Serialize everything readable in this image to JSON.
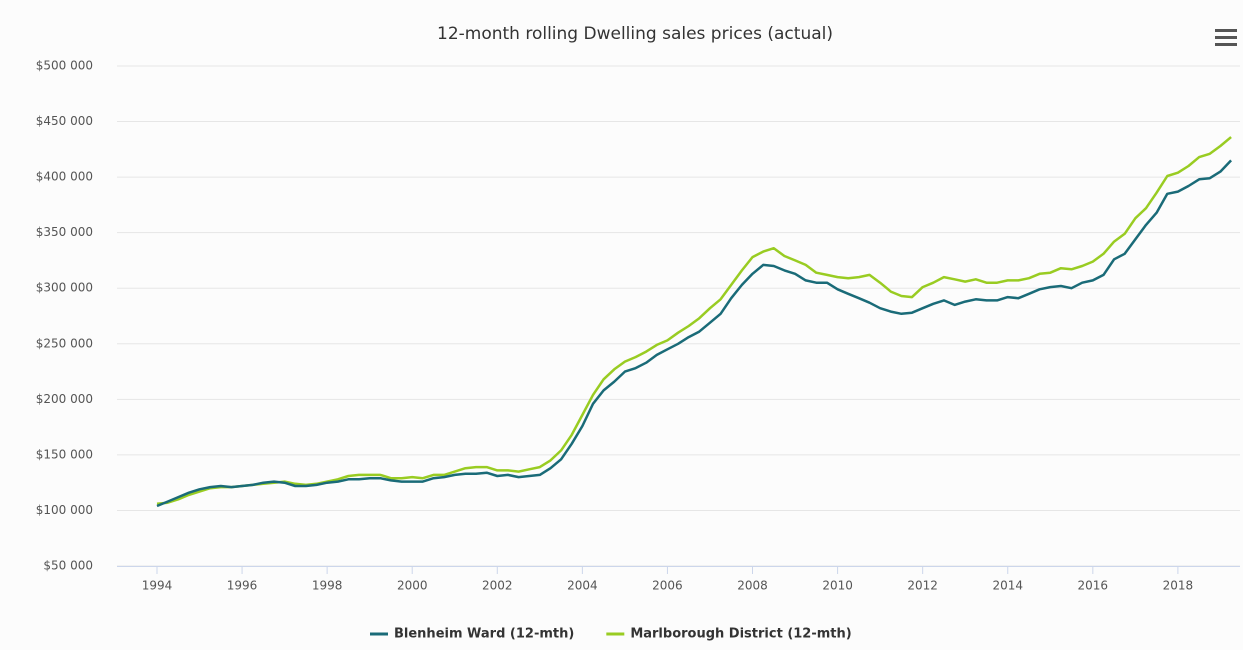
{
  "chart_data": {
    "type": "line",
    "title": "12-month rolling Dwelling sales prices (actual)",
    "x": [
      1994,
      1994.25,
      1994.5,
      1994.75,
      1995,
      1995.25,
      1995.5,
      1995.75,
      1996,
      1996.25,
      1996.5,
      1996.75,
      1997,
      1997.25,
      1997.5,
      1997.75,
      1998,
      1998.25,
      1998.5,
      1998.75,
      1999,
      1999.25,
      1999.5,
      1999.75,
      2000,
      2000.25,
      2000.5,
      2000.75,
      2001,
      2001.25,
      2001.5,
      2001.75,
      2002,
      2002.25,
      2002.5,
      2002.75,
      2003,
      2003.25,
      2003.5,
      2003.75,
      2004,
      2004.25,
      2004.5,
      2004.75,
      2005,
      2005.25,
      2005.5,
      2005.75,
      2006,
      2006.25,
      2006.5,
      2006.75,
      2007,
      2007.25,
      2007.5,
      2007.75,
      2008,
      2008.25,
      2008.5,
      2008.75,
      2009,
      2009.25,
      2009.5,
      2009.75,
      2010,
      2010.25,
      2010.5,
      2010.75,
      2011,
      2011.25,
      2011.5,
      2011.75,
      2012,
      2012.25,
      2012.5,
      2012.75,
      2013,
      2013.25,
      2013.5,
      2013.75,
      2014,
      2014.25,
      2014.5,
      2014.75,
      2015,
      2015.25,
      2015.5,
      2015.75,
      2016,
      2016.25,
      2016.5,
      2016.75,
      2017,
      2017.25,
      2017.5,
      2017.75,
      2018,
      2018.25,
      2018.5,
      2018.75,
      2019,
      2019.25
    ],
    "series": [
      {
        "name": "Blenheim Ward (12-mth)",
        "color": "#1a6b78",
        "values": [
          104000,
          108000,
          112000,
          116000,
          119000,
          121000,
          122000,
          121000,
          122000,
          123000,
          125000,
          126000,
          125000,
          122000,
          122000,
          123000,
          125000,
          126000,
          128000,
          128000,
          129000,
          129000,
          127000,
          126000,
          126000,
          126000,
          129000,
          130000,
          132000,
          133000,
          133000,
          134000,
          131000,
          132000,
          130000,
          131000,
          132000,
          138000,
          146000,
          160000,
          176000,
          196000,
          208000,
          216000,
          225000,
          228000,
          233000,
          240000,
          245000,
          250000,
          256000,
          261000,
          269000,
          277000,
          291000,
          303000,
          313000,
          321000,
          320000,
          316000,
          313000,
          307000,
          305000,
          305000,
          299000,
          295000,
          291000,
          287000,
          282000,
          279000,
          277000,
          278000,
          282000,
          286000,
          289000,
          285000,
          288000,
          290000,
          289000,
          289000,
          292000,
          291000,
          295000,
          299000,
          301000,
          302000,
          300000,
          305000,
          307000,
          312000,
          326000,
          331000,
          344000,
          357000,
          368000,
          385000,
          387000,
          392000,
          398000,
          399000,
          405000,
          415000
        ]
      },
      {
        "name": "Marlborough District (12-mth)",
        "color": "#99cc22",
        "values": [
          106000,
          107000,
          110000,
          114000,
          117000,
          120000,
          121000,
          121000,
          122000,
          123000,
          124000,
          125000,
          126000,
          124000,
          123000,
          124000,
          126000,
          128000,
          131000,
          132000,
          132000,
          132000,
          129000,
          129000,
          130000,
          129000,
          132000,
          132000,
          135000,
          138000,
          139000,
          139000,
          136000,
          136000,
          135000,
          137000,
          139000,
          145000,
          154000,
          168000,
          186000,
          204000,
          218000,
          227000,
          234000,
          238000,
          243000,
          249000,
          253000,
          260000,
          266000,
          273000,
          282000,
          290000,
          303000,
          316000,
          328000,
          333000,
          336000,
          329000,
          325000,
          321000,
          314000,
          312000,
          310000,
          309000,
          310000,
          312000,
          305000,
          297000,
          293000,
          292000,
          301000,
          305000,
          310000,
          308000,
          306000,
          308000,
          305000,
          305000,
          307000,
          307000,
          309000,
          313000,
          314000,
          318000,
          317000,
          320000,
          324000,
          331000,
          342000,
          349000,
          363000,
          372000,
          386000,
          401000,
          404000,
          410000,
          418000,
          421000,
          428000,
          436000
        ]
      }
    ],
    "xlim": [
      1993.06,
      2019.46
    ],
    "xticks": [
      1994,
      1996,
      1998,
      2000,
      2002,
      2004,
      2006,
      2008,
      2010,
      2012,
      2014,
      2016,
      2018
    ],
    "ylim": [
      50000,
      500000
    ],
    "yticks": [
      {
        "value": 50000,
        "label": "$50 000"
      },
      {
        "value": 100000,
        "label": "$100 000"
      },
      {
        "value": 150000,
        "label": "$150 000"
      },
      {
        "value": 200000,
        "label": "$200 000"
      },
      {
        "value": 250000,
        "label": "$250 000"
      },
      {
        "value": 300000,
        "label": "$300 000"
      },
      {
        "value": 350000,
        "label": "$350 000"
      },
      {
        "value": 400000,
        "label": "$400 000"
      },
      {
        "value": 450000,
        "label": "$450 000"
      },
      {
        "value": 500000,
        "label": "$500 000"
      }
    ],
    "grid": true
  }
}
